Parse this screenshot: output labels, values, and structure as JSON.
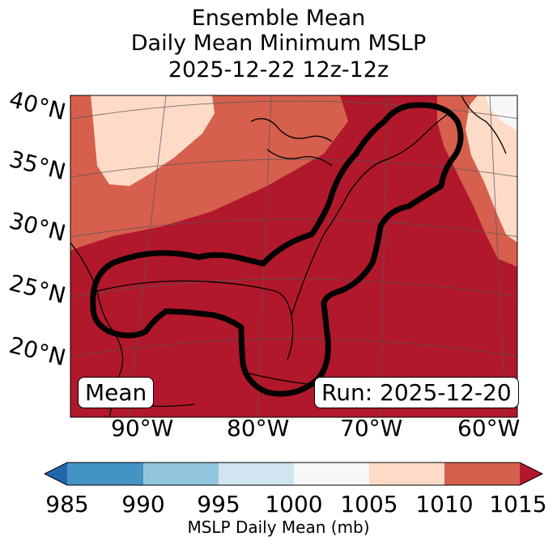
{
  "title": {
    "line1": "Ensemble Mean",
    "line2": "Daily Mean Minimum MSLP",
    "line3": "2025-12-22 12z-12z"
  },
  "map": {
    "lat_labels": [
      "40°N",
      "35°N",
      "30°N",
      "25°N",
      "20°N"
    ],
    "lon_labels": [
      "90°W",
      "80°W",
      "70°W",
      "60°W"
    ],
    "mean_label": "Mean",
    "run_label": "Run: 2025-12-20",
    "colors": {
      "c1010_1015": "#b2182b",
      "c1005_1010": "#d6604d",
      "c1000_1005": "#fddbc7",
      "c995_1000": "#f7f7f7"
    }
  },
  "colorbar": {
    "ticks": [
      "985",
      "990",
      "995",
      "1000",
      "1005",
      "1010",
      "1015"
    ],
    "label": "MSLP Daily Mean (mb)",
    "colors": [
      "#2166ac",
      "#4393c3",
      "#92c5de",
      "#d1e5f0",
      "#f7f7f7",
      "#fddbc7",
      "#d6604d",
      "#b2182b"
    ]
  }
}
